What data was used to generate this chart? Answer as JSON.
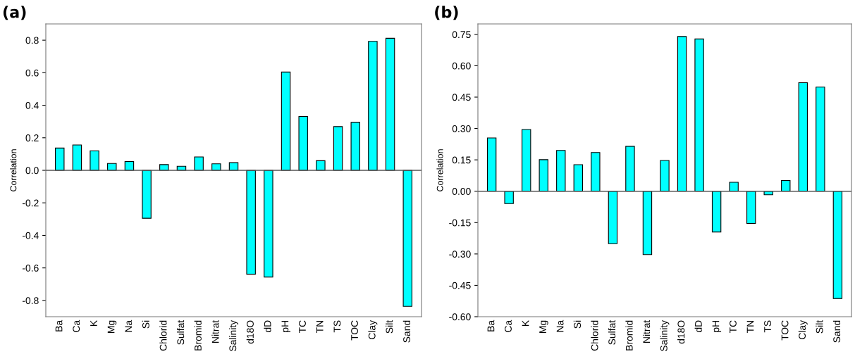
{
  "chart_data": [
    {
      "type": "bar",
      "title": "(a)",
      "ylabel": "Correlation",
      "categories": [
        "Ba",
        "Ca",
        "K",
        "Mg",
        "Na",
        "Si",
        "Chlorid",
        "Sulfat",
        "Bromid",
        "Nitrat",
        "Salinity",
        "d18O",
        "dD",
        "pH",
        "TC",
        "TN",
        "TS",
        "TOC",
        "Clay",
        "Silt",
        "Sand"
      ],
      "values": [
        0.137,
        0.156,
        0.12,
        0.042,
        0.054,
        -0.295,
        0.035,
        0.025,
        0.082,
        0.04,
        0.047,
        -0.639,
        -0.656,
        0.604,
        0.331,
        0.059,
        0.269,
        0.295,
        0.793,
        0.812,
        -0.836
      ],
      "color": "#00ffff",
      "ylim": [
        -0.9,
        0.9
      ],
      "yticks": [
        {
          "value": -0.8,
          "label": "-0.8"
        },
        {
          "value": -0.6,
          "label": "-0.6"
        },
        {
          "value": -0.4,
          "label": "-0.4"
        },
        {
          "value": -0.2,
          "label": "-0.2"
        },
        {
          "value": 0,
          "label": "0.0"
        },
        0.2,
        0.4,
        0.6,
        0.8
      ],
      "ref_lines": [
        {
          "axis": "y",
          "value": 0,
          "color": "#555555"
        }
      ],
      "grid": false,
      "legend": false
    },
    {
      "type": "bar",
      "title": "(b)",
      "ylabel": "Correlation",
      "categories": [
        "Ba",
        "Ca",
        "K",
        "Mg",
        "Na",
        "Si",
        "Chlorid",
        "Sulfat",
        "Bromid",
        "Nitrat",
        "Salinity",
        "d18O",
        "dD",
        "pH",
        "TC",
        "TN",
        "TS",
        "TOC",
        "Clay",
        "Silt",
        "Sand"
      ],
      "values": [
        0.255,
        -0.059,
        0.295,
        0.151,
        0.195,
        0.127,
        0.185,
        -0.251,
        0.215,
        -0.303,
        0.147,
        0.74,
        0.728,
        -0.195,
        0.043,
        -0.154,
        -0.017,
        0.051,
        0.519,
        0.498,
        -0.513
      ],
      "color": "#00ffff",
      "ylim": [
        -0.6,
        0.8
      ],
      "yticks": [
        {
          "value": -0.6,
          "label": "-0.60"
        },
        {
          "value": -0.45,
          "label": "-0.45"
        },
        {
          "value": -0.3,
          "label": "-0.30"
        },
        {
          "value": -0.15,
          "label": "-0.15"
        },
        {
          "value": 0,
          "label": "0.00"
        },
        {
          "value": 0.15,
          "label": "0.15"
        },
        {
          "value": 0.3,
          "label": "0.30"
        },
        {
          "value": 0.45,
          "label": "0.45"
        },
        {
          "value": 0.6,
          "label": "0.60"
        },
        {
          "value": 0.75,
          "label": "0.75"
        }
      ],
      "ref_lines": [
        {
          "axis": "y",
          "value": 0,
          "color": "#555555"
        }
      ],
      "grid": false,
      "legend": false
    }
  ]
}
